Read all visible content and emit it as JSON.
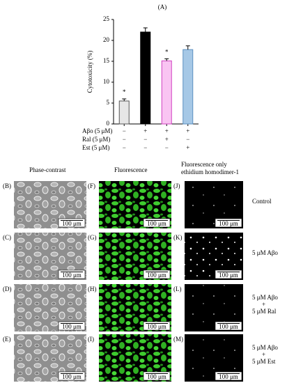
{
  "chart_data": {
    "type": "bar",
    "panel_label": "(A)",
    "ylabel": "Cytotoxicity (%)",
    "categories": [
      null,
      null,
      null,
      null
    ],
    "values": [
      5.5,
      22,
      15.1,
      17.8
    ],
    "errors": [
      0.5,
      1,
      0.5,
      0.9
    ],
    "significance": [
      "*",
      null,
      "*",
      null
    ],
    "colors": [
      "#e6e6e6",
      "#000000",
      "#f9c4f2",
      "#a6c8e6"
    ],
    "edge_colors": [
      "#555555",
      "#000000",
      "#d040c0",
      "#5b8fc0"
    ],
    "ylim": [
      0,
      25
    ],
    "yticks": [
      0,
      5,
      10,
      15,
      20,
      25
    ],
    "treatments": [
      {
        "name": "Aβo (5 μM)",
        "signs": [
          "−",
          "+",
          "+",
          "+"
        ]
      },
      {
        "name": "Ral  (5 μM)",
        "signs": [
          "−",
          "−",
          "+",
          "−"
        ]
      },
      {
        "name": "Est  (5 μM)",
        "signs": [
          "−",
          "−",
          "−",
          "+"
        ]
      }
    ]
  },
  "figure": {
    "column_headers": [
      [
        "Phase-contrast"
      ],
      [
        "Fluorescence"
      ],
      [
        "Fluorescence only",
        "ethidium homodimer-1"
      ]
    ],
    "rows": [
      {
        "condition": [
          "Control"
        ],
        "panels": [
          {
            "label": "(B)",
            "scale_bar": "100 μm"
          },
          {
            "label": "(F)",
            "scale_bar": "100 μm"
          },
          {
            "label": "(J)",
            "scale_bar": "100 μm"
          }
        ]
      },
      {
        "condition": [
          "5 μM Aβo"
        ],
        "panels": [
          {
            "label": "(C)",
            "scale_bar": "100 μm"
          },
          {
            "label": "(G)",
            "scale_bar": "100 μm"
          },
          {
            "label": "(K)",
            "scale_bar": "100 μm"
          }
        ]
      },
      {
        "condition": [
          "5 μM Aβo",
          "+",
          "5 μM Ral"
        ],
        "panels": [
          {
            "label": "(D)",
            "scale_bar": "100 μm"
          },
          {
            "label": "(H)",
            "scale_bar": "100 μm"
          },
          {
            "label": "(L)",
            "scale_bar": "100 μm"
          }
        ]
      },
      {
        "condition": [
          "5 μM Aβo",
          "+",
          "5 μM Est"
        ],
        "panels": [
          {
            "label": "(E)",
            "scale_bar": "100 μm"
          },
          {
            "label": "(I)",
            "scale_bar": "100 μm"
          },
          {
            "label": "(M)",
            "scale_bar": "100 μm"
          }
        ]
      }
    ]
  }
}
